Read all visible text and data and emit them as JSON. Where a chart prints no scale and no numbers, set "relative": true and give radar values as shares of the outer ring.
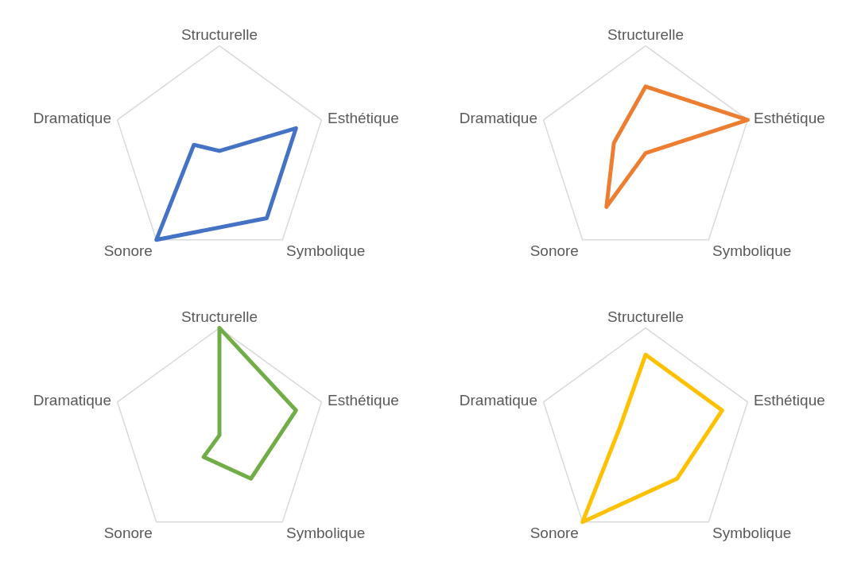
{
  "chart_data": [
    {
      "type": "radar",
      "relative": true,
      "grid": true,
      "categories": [
        "Structurelle",
        "Esthétique",
        "Symbolique",
        "Sonore",
        "Dramatique"
      ],
      "series": [
        {
          "color": "#4472c4",
          "values": [
            0.02,
            0.75,
            0.75,
            1,
            0.25
          ]
        }
      ]
    },
    {
      "type": "radar",
      "relative": true,
      "grid": true,
      "categories": [
        "Structurelle",
        "Esthétique",
        "Symbolique",
        "Sonore",
        "Dramatique"
      ],
      "series": [
        {
          "color": "#ed7d31",
          "values": [
            0.62,
            1,
            0,
            0.62,
            0.31
          ]
        }
      ]
    },
    {
      "type": "radar",
      "relative": true,
      "grid": true,
      "categories": [
        "Structurelle",
        "Esthétique",
        "Symbolique",
        "Sonore",
        "Dramatique"
      ],
      "series": [
        {
          "color": "#70ad47",
          "values": [
            1,
            0.75,
            0.5,
            0.25,
            0
          ]
        }
      ]
    },
    {
      "type": "radar",
      "relative": true,
      "grid": true,
      "categories": [
        "Structurelle",
        "Esthétique",
        "Symbolique",
        "Sonore",
        "Dramatique"
      ],
      "series": [
        {
          "color": "#ffc000",
          "values": [
            0.75,
            0.75,
            0.5,
            1,
            0.25
          ]
        }
      ]
    }
  ]
}
